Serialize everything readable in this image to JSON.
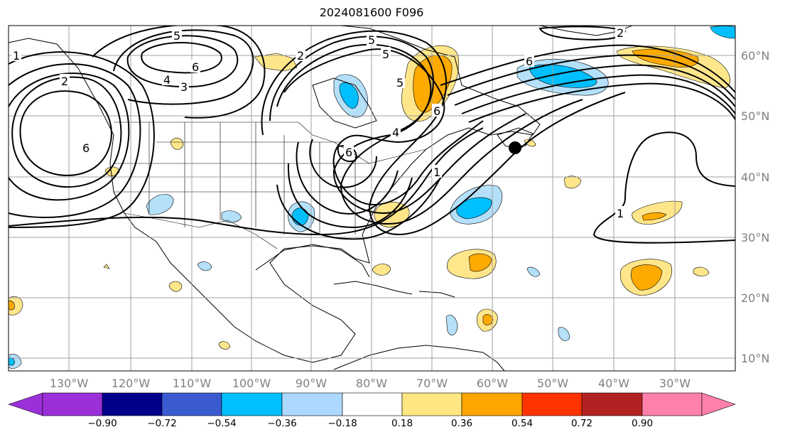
{
  "title": "2024081600 F096",
  "map": {
    "lon_labels": [
      "130°W",
      "120°W",
      "110°W",
      "100°W",
      "90°W",
      "80°W",
      "70°W",
      "60°W",
      "50°W",
      "40°W",
      "30°W"
    ],
    "lat_labels": [
      "60°N",
      "50°N",
      "40°N",
      "30°N",
      "20°N",
      "10°N"
    ],
    "storm_marker": "black-dot",
    "contour_labels": [
      "5",
      "6",
      "4",
      "3",
      "2",
      "6",
      "1",
      "6",
      "2",
      "5",
      "6",
      "6",
      "5",
      "4",
      "1",
      "1",
      "5",
      "2"
    ]
  },
  "colorbar": {
    "ticks": [
      "−0.90",
      "−0.72",
      "−0.54",
      "−0.36",
      "−0.18",
      "0.18",
      "0.36",
      "0.54",
      "0.72",
      "0.90"
    ],
    "colors": [
      "#9b30d9",
      "#00008b",
      "#3a5bd0",
      "#00bfff",
      "#add8ff",
      "#ffffff",
      "#ffe680",
      "#ffa500",
      "#ff3300",
      "#b22222",
      "#ff80aa"
    ]
  },
  "colors": {
    "light_blue": "#b4e0fa",
    "cyan": "#00bfff",
    "light_yellow": "#ffe68a",
    "orange": "#ffaa00",
    "grid": "#a0a0a0"
  }
}
